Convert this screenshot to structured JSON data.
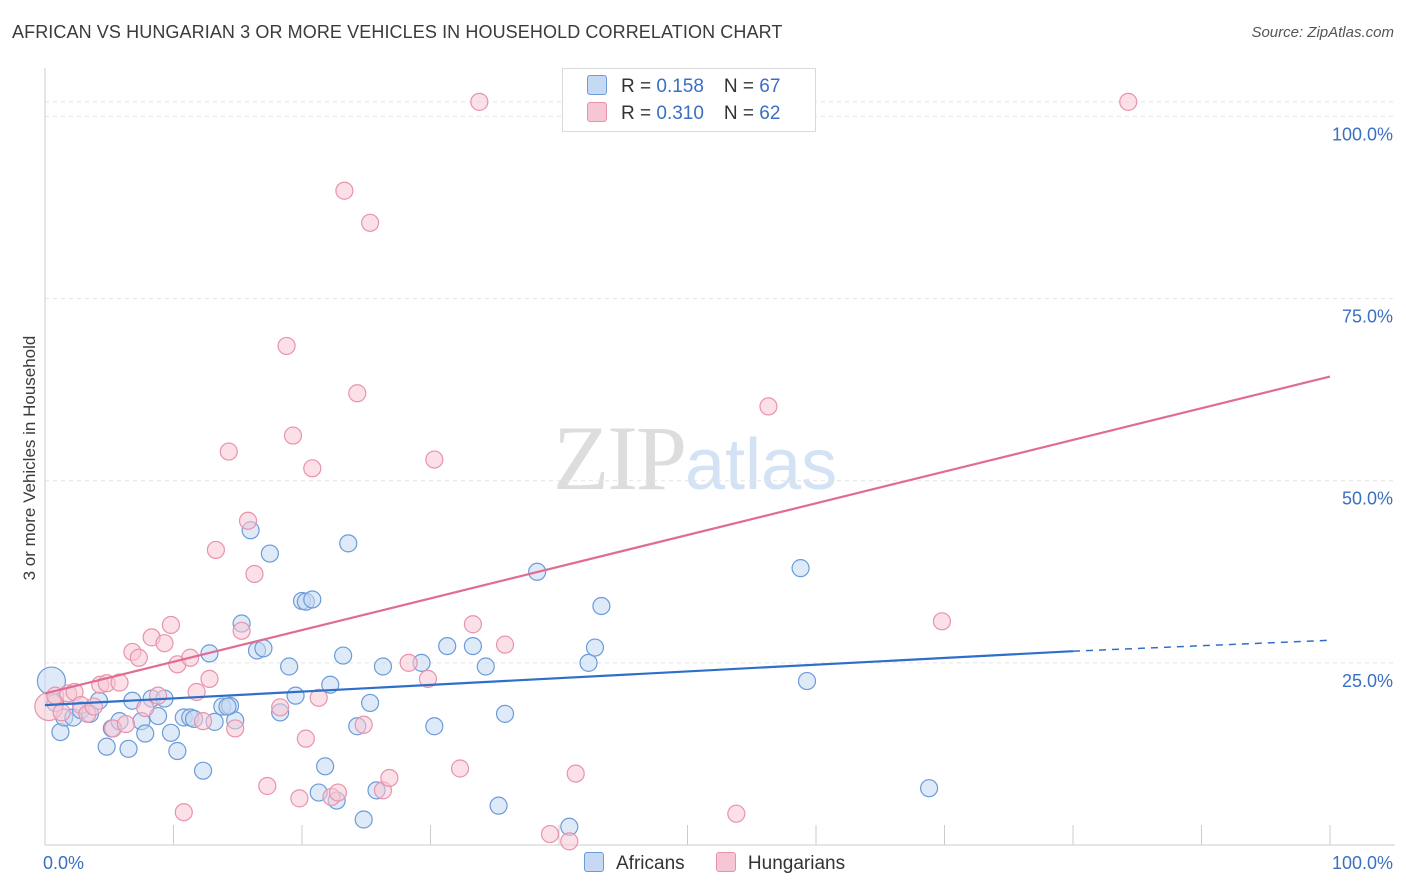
{
  "title": "AFRICAN VS HUNGARIAN 3 OR MORE VEHICLES IN HOUSEHOLD CORRELATION CHART",
  "source": "Source: ZipAtlas.com",
  "watermark": {
    "zip": "ZIP",
    "atlas": "atlas"
  },
  "legend": [
    {
      "r_label": "R = ",
      "r_value": "0.158",
      "n_label": "N = ",
      "n_value": "67"
    },
    {
      "r_label": "R = ",
      "r_value": "0.310",
      "n_label": "N = ",
      "n_value": "62"
    }
  ],
  "colors": {
    "africans_fill": "#c5d9f3",
    "africans_stroke": "#6b9bd8",
    "africans_line": "#2f6fc9",
    "hungarians_fill": "#f7c6d4",
    "hungarians_stroke": "#e893ad",
    "hungarians_line": "#e06b93",
    "tick_label": "#3a6fc4",
    "grid": "#e4e4e4"
  },
  "chart_data": {
    "type": "scatter",
    "title": "AFRICAN VS HUNGARIAN 3 OR MORE VEHICLES IN HOUSEHOLD CORRELATION CHART",
    "xlabel": "",
    "ylabel": "3 or more Vehicles in Household",
    "xlim": [
      0,
      100
    ],
    "ylim": [
      0,
      105
    ],
    "x_tick_labels": [
      "0.0%",
      "100.0%"
    ],
    "y_ticks": [
      25,
      50,
      75,
      100
    ],
    "y_tick_labels": [
      "25.0%",
      "50.0%",
      "75.0%",
      "100.0%"
    ],
    "grid": true,
    "legend_position": "top-center",
    "series": [
      {
        "name": "Africans",
        "r": 0.158,
        "n": 67,
        "trend": {
          "x0": 0,
          "y0": 19.2,
          "x1": 80,
          "y1": 26.6,
          "dashed_to_x": 100,
          "dashed_to_y": 28.1
        },
        "points": [
          [
            0.5,
            22.5
          ],
          [
            0.8,
            19.5
          ],
          [
            1.2,
            15.5
          ],
          [
            1.5,
            17.5
          ],
          [
            2.2,
            17.5
          ],
          [
            2.8,
            18.5
          ],
          [
            3.5,
            18.0
          ],
          [
            4.2,
            19.8
          ],
          [
            4.8,
            13.5
          ],
          [
            5.2,
            16.0
          ],
          [
            5.8,
            17.0
          ],
          [
            6.5,
            13.2
          ],
          [
            6.8,
            19.8
          ],
          [
            7.5,
            17.0
          ],
          [
            7.8,
            15.3
          ],
          [
            8.3,
            20.1
          ],
          [
            8.8,
            17.7
          ],
          [
            9.3,
            20.1
          ],
          [
            9.8,
            15.4
          ],
          [
            10.3,
            12.9
          ],
          [
            10.8,
            17.5
          ],
          [
            11.3,
            17.5
          ],
          [
            11.6,
            17.3
          ],
          [
            12.3,
            10.2
          ],
          [
            12.8,
            26.3
          ],
          [
            13.2,
            16.9
          ],
          [
            13.8,
            19.0
          ],
          [
            14.4,
            19.1
          ],
          [
            14.8,
            17.1
          ],
          [
            15.3,
            30.4
          ],
          [
            16.0,
            43.2
          ],
          [
            16.5,
            26.7
          ],
          [
            17.0,
            27.0
          ],
          [
            17.5,
            40.0
          ],
          [
            18.3,
            18.2
          ],
          [
            19.0,
            24.5
          ],
          [
            19.5,
            20.5
          ],
          [
            20.0,
            33.5
          ],
          [
            20.3,
            33.4
          ],
          [
            20.8,
            33.7
          ],
          [
            21.3,
            7.2
          ],
          [
            21.8,
            10.8
          ],
          [
            22.2,
            22.0
          ],
          [
            22.7,
            6.1
          ],
          [
            23.2,
            26.0
          ],
          [
            23.6,
            41.4
          ],
          [
            24.3,
            16.3
          ],
          [
            24.8,
            3.5
          ],
          [
            25.3,
            19.5
          ],
          [
            25.8,
            7.5
          ],
          [
            26.3,
            24.5
          ],
          [
            29.3,
            25.0
          ],
          [
            30.3,
            16.3
          ],
          [
            31.3,
            27.3
          ],
          [
            33.3,
            27.3
          ],
          [
            34.3,
            24.5
          ],
          [
            35.3,
            5.4
          ],
          [
            35.8,
            18.0
          ],
          [
            38.3,
            37.5
          ],
          [
            40.8,
            2.5
          ],
          [
            42.3,
            25.0
          ],
          [
            42.8,
            27.1
          ],
          [
            43.3,
            32.8
          ],
          [
            58.8,
            38.0
          ],
          [
            59.3,
            22.5
          ],
          [
            68.8,
            7.8
          ],
          [
            14.2,
            19.0
          ]
        ]
      },
      {
        "name": "Hungarians",
        "r": 0.31,
        "n": 62,
        "trend": {
          "x0": 0,
          "y0": 20.8,
          "x1": 100,
          "y1": 64.3
        },
        "points": [
          [
            0.3,
            19.0
          ],
          [
            0.8,
            20.5
          ],
          [
            1.3,
            18.2
          ],
          [
            1.8,
            20.8
          ],
          [
            2.3,
            21.0
          ],
          [
            2.8,
            19.2
          ],
          [
            3.3,
            18.0
          ],
          [
            3.8,
            19.0
          ],
          [
            4.3,
            22.0
          ],
          [
            4.8,
            22.2
          ],
          [
            5.3,
            16.0
          ],
          [
            5.8,
            22.3
          ],
          [
            6.3,
            16.6
          ],
          [
            6.8,
            26.5
          ],
          [
            7.3,
            25.7
          ],
          [
            7.8,
            18.8
          ],
          [
            8.3,
            28.5
          ],
          [
            8.8,
            20.5
          ],
          [
            9.3,
            27.7
          ],
          [
            9.8,
            30.2
          ],
          [
            10.3,
            24.8
          ],
          [
            10.8,
            4.5
          ],
          [
            11.3,
            25.7
          ],
          [
            11.8,
            21.0
          ],
          [
            12.3,
            17.0
          ],
          [
            12.8,
            22.8
          ],
          [
            13.3,
            40.5
          ],
          [
            14.3,
            54.0
          ],
          [
            14.8,
            16.0
          ],
          [
            15.3,
            29.4
          ],
          [
            15.8,
            44.5
          ],
          [
            16.3,
            37.2
          ],
          [
            17.3,
            8.1
          ],
          [
            18.3,
            18.9
          ],
          [
            18.8,
            68.5
          ],
          [
            19.3,
            56.2
          ],
          [
            19.8,
            6.4
          ],
          [
            20.3,
            14.6
          ],
          [
            20.8,
            51.7
          ],
          [
            21.3,
            20.2
          ],
          [
            22.3,
            6.6
          ],
          [
            22.8,
            7.2
          ],
          [
            23.3,
            89.8
          ],
          [
            24.3,
            62.0
          ],
          [
            24.8,
            16.5
          ],
          [
            25.3,
            85.4
          ],
          [
            26.3,
            7.5
          ],
          [
            26.8,
            9.2
          ],
          [
            28.3,
            25.0
          ],
          [
            29.8,
            22.8
          ],
          [
            30.3,
            52.9
          ],
          [
            32.3,
            10.5
          ],
          [
            33.3,
            30.3
          ],
          [
            33.8,
            102.0
          ],
          [
            35.8,
            27.5
          ],
          [
            39.3,
            1.5
          ],
          [
            40.8,
            0.5
          ],
          [
            41.3,
            9.8
          ],
          [
            53.8,
            4.3
          ],
          [
            56.3,
            60.2
          ],
          [
            69.8,
            30.7
          ],
          [
            84.3,
            102.0
          ]
        ]
      }
    ]
  },
  "bottom_legend": [
    {
      "label": "Africans"
    },
    {
      "label": "Hungarians"
    }
  ]
}
